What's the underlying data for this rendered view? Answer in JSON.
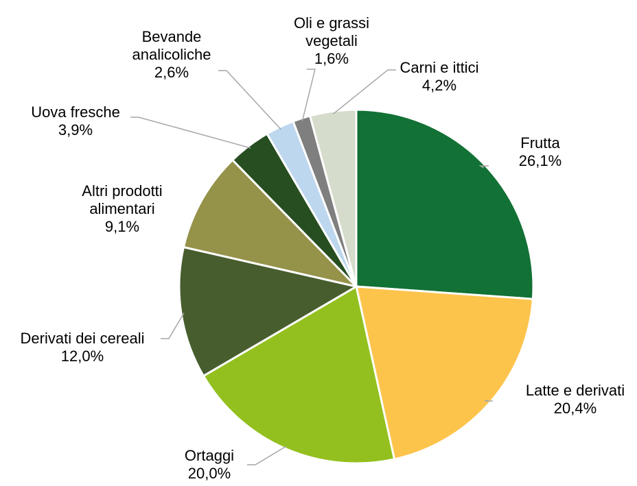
{
  "chart_data": {
    "type": "pie",
    "categories": [
      "Frutta",
      "Latte e derivati",
      "Ortaggi",
      "Derivati dei cereali",
      "Altri prodotti alimentari",
      "Uova fresche",
      "Bevande analicoliche",
      "Oli e grassi vegetali",
      "Carni e ittici"
    ],
    "values": [
      26.1,
      20.4,
      20.0,
      12.0,
      9.1,
      3.9,
      2.6,
      1.6,
      4.2
    ],
    "value_labels": [
      "26,1%",
      "20,4%",
      "20,0%",
      "12,0%",
      "9,1%",
      "3,9%",
      "2,6%",
      "1,6%",
      "4,2%"
    ],
    "colors": [
      "#127135",
      "#fdc44c",
      "#93c01f",
      "#475d2e",
      "#95924a",
      "#274e21",
      "#bdd7ee",
      "#7f7f7f",
      "#d6dccb"
    ]
  }
}
